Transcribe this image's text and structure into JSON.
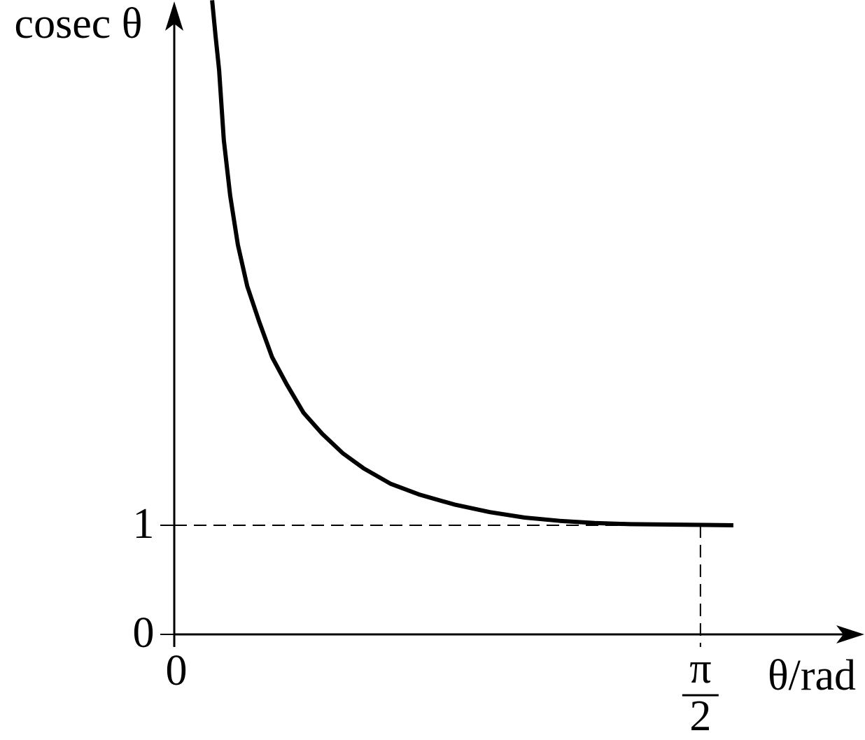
{
  "chart_data": {
    "type": "line",
    "y_label": "cosec θ",
    "x_label": "θ/rad",
    "x": [
      0.113,
      0.123,
      0.134,
      0.148,
      0.167,
      0.19,
      0.218,
      0.253,
      0.292,
      0.336,
      0.386,
      0.441,
      0.503,
      0.566,
      0.646,
      0.733,
      0.836,
      0.942,
      1.046,
      1.151,
      1.255,
      1.36,
      1.669
    ],
    "series": [
      {
        "color": "#000000",
        "values": [
          5.81,
          5.49,
          5.17,
          4.53,
          4.02,
          3.57,
          3.19,
          2.87,
          2.54,
          2.29,
          2.03,
          1.84,
          1.66,
          1.52,
          1.38,
          1.28,
          1.19,
          1.12,
          1.07,
          1.04,
          1.02,
          1.01,
          1.0
        ]
      }
    ],
    "xlim": [
      0,
      2.06
    ],
    "ylim": [
      0,
      5.8
    ],
    "xticks": [
      0,
      {
        "value": 1.5708,
        "label": "π/2"
      }
    ],
    "yticks": [
      0,
      1
    ]
  }
}
